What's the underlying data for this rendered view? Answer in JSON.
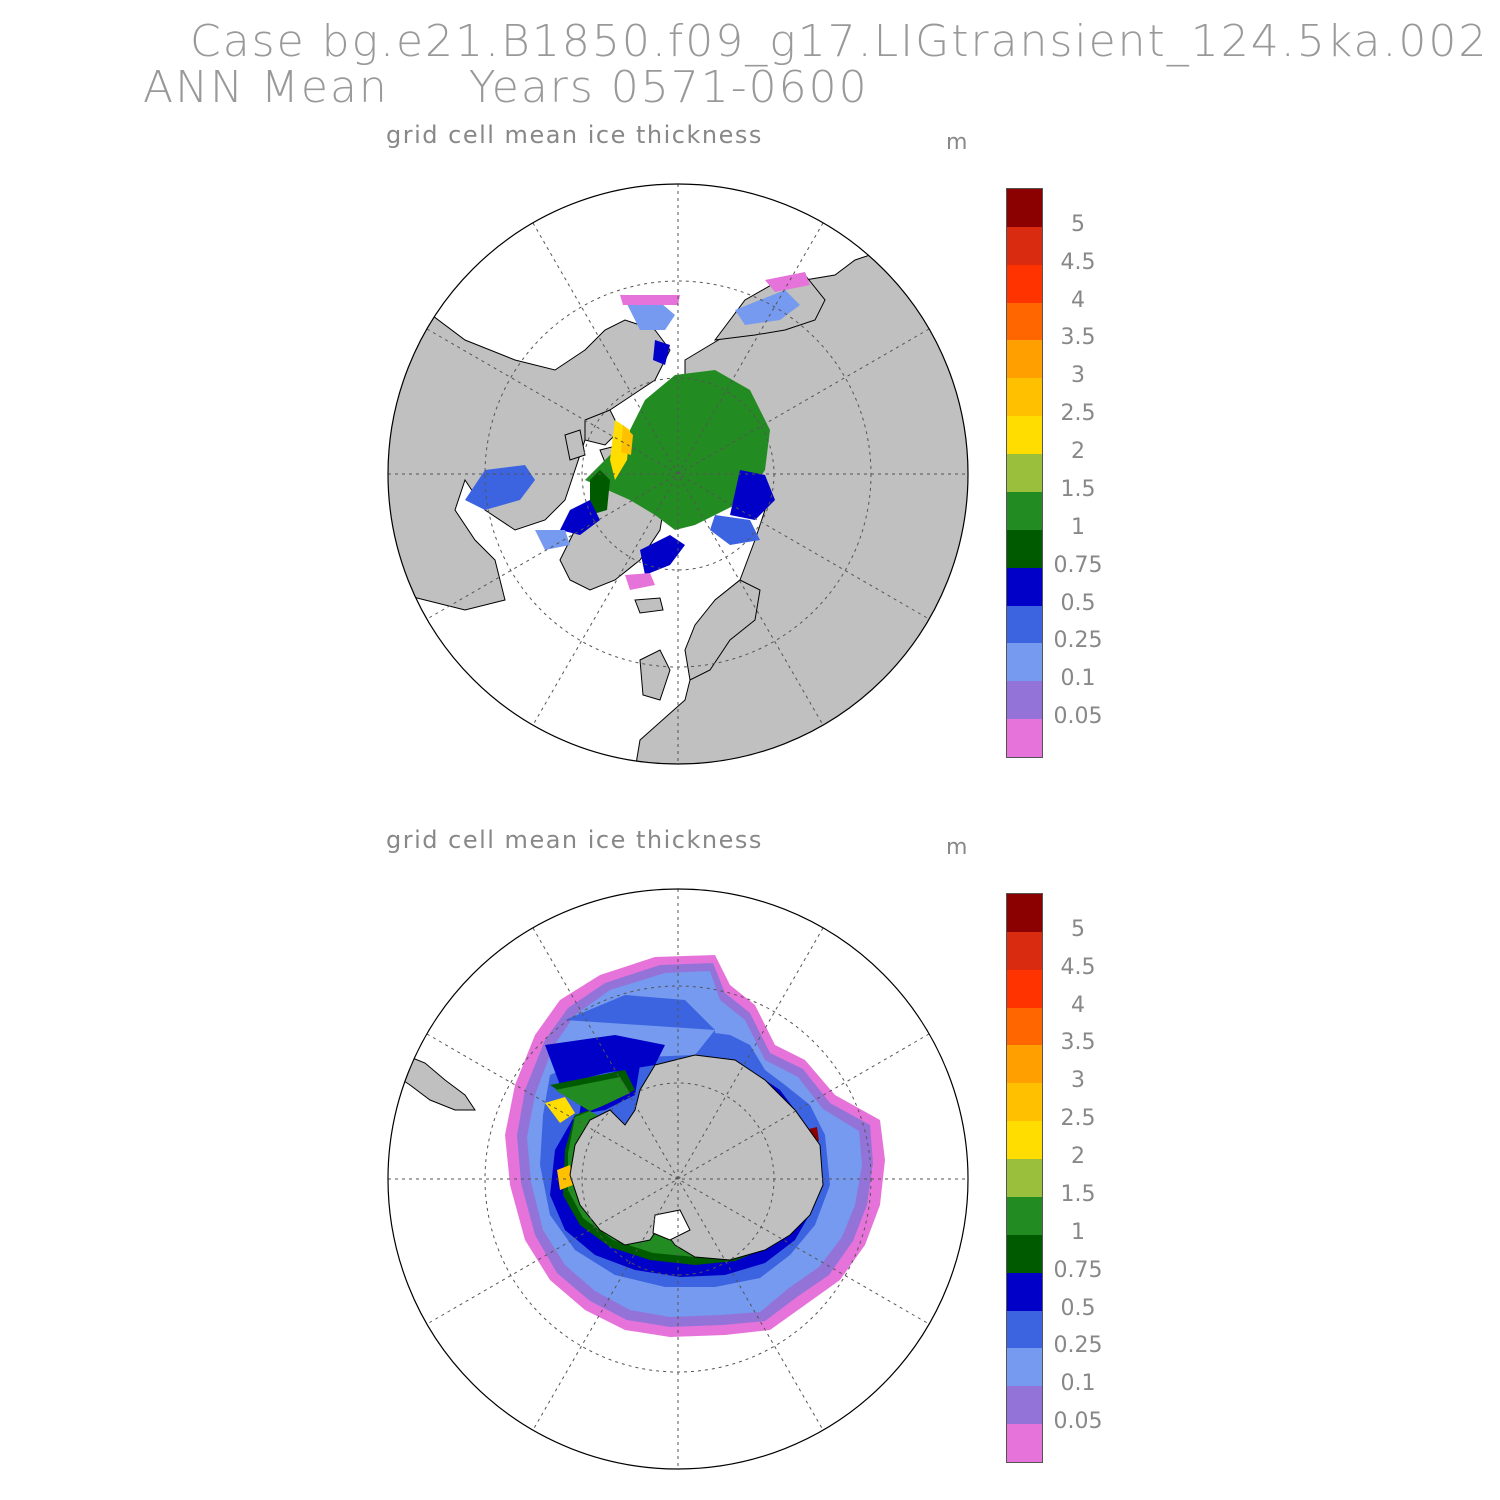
{
  "header": {
    "case_line": "Case bg.e21.B1850.f09_g17.LIGtransient_124.5ka.002",
    "ann_line": "ANN Mean     Years 0571-0600"
  },
  "panels": [
    {
      "id": "north",
      "title": "grid cell mean ice thickness",
      "units": "m"
    },
    {
      "id": "south",
      "title": "grid cell mean ice thickness",
      "units": "m"
    }
  ],
  "colorbar": {
    "colors": [
      "#e673d9",
      "#9473d9",
      "#759aef",
      "#3c64e0",
      "#0000c8",
      "#005a00",
      "#228b22",
      "#99bf3c",
      "#ffdd00",
      "#ffc000",
      "#ff9f00",
      "#ff6600",
      "#ff3300",
      "#d92b10",
      "#8b0000"
    ],
    "labels": [
      "0.05",
      "0.1",
      "0.25",
      "0.5",
      "0.75",
      "1",
      "1.5",
      "2",
      "2.5",
      "3",
      "3.5",
      "4",
      "4.5",
      "5"
    ]
  },
  "style": {
    "land": "#c0c0c0",
    "ocean": "#ffffff"
  }
}
